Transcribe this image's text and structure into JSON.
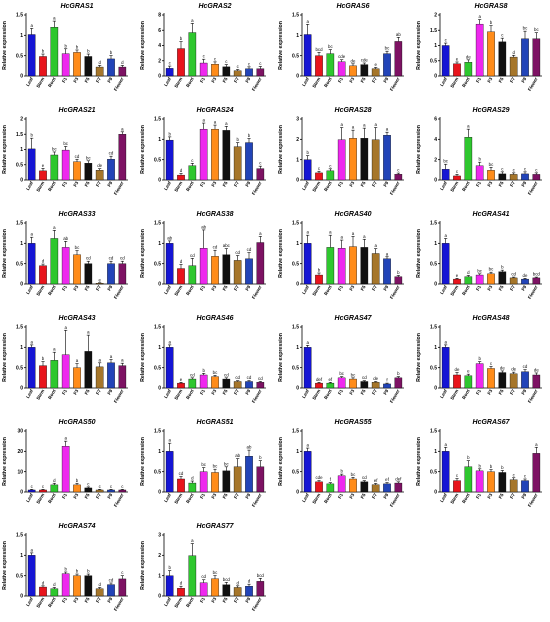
{
  "chart_data": [
    {
      "type": "bar",
      "title": "HcGRAS1",
      "ylabel": "Relative expression",
      "ylim": [
        0,
        1.5
      ],
      "yticks": [
        0,
        0.5,
        1.0,
        1.5
      ],
      "values": [
        1.02,
        0.48,
        1.2,
        0.55,
        0.58,
        0.48,
        0.22,
        0.42,
        0.22
      ],
      "errors": [
        0.15,
        0.06,
        0.15,
        0.12,
        0.06,
        0.06,
        0.04,
        0.08,
        0.04
      ],
      "sig": [
        "a",
        "b",
        "a",
        "b",
        "b",
        "b",
        "d",
        "b",
        "d"
      ]
    },
    {
      "type": "bar",
      "title": "HcGRAS2",
      "ylabel": "Relative expression",
      "ylim": [
        0,
        8
      ],
      "yticks": [
        0,
        2,
        4,
        6,
        8
      ],
      "values": [
        1.0,
        3.6,
        5.7,
        1.7,
        1.55,
        1.2,
        0.7,
        0.95,
        0.95
      ],
      "errors": [
        0.3,
        0.9,
        1.2,
        0.5,
        0.3,
        0.3,
        0.15,
        0.25,
        0.3
      ],
      "sig": [
        "c",
        "b",
        "a",
        "c",
        "c",
        "c",
        "c",
        "c",
        "c"
      ]
    },
    {
      "type": "bar",
      "title": "HcGRAS6",
      "ylabel": "Relative expression",
      "ylim": [
        0,
        1.5
      ],
      "yticks": [
        0,
        0.5,
        1.0,
        1.5
      ],
      "values": [
        1.02,
        0.5,
        0.55,
        0.35,
        0.25,
        0.28,
        0.18,
        0.55,
        0.85
      ],
      "errors": [
        0.25,
        0.08,
        0.1,
        0.05,
        0.05,
        0.04,
        0.03,
        0.06,
        0.1
      ],
      "sig": [
        "a",
        "bcd",
        "bc",
        "cde",
        "de",
        "cde",
        "e",
        "bc",
        "ab"
      ]
    },
    {
      "type": "bar",
      "title": "HcGRAS8",
      "ylabel": "Relative expression",
      "ylim": [
        0,
        2.0
      ],
      "yticks": [
        0,
        0.5,
        1.0,
        1.5,
        2.0
      ],
      "values": [
        1.0,
        0.4,
        0.45,
        1.7,
        1.45,
        1.12,
        0.62,
        1.22,
        1.22
      ],
      "errors": [
        0.08,
        0.06,
        0.08,
        0.15,
        0.2,
        0.12,
        0.06,
        0.25,
        0.2
      ],
      "sig": [
        "c",
        "e",
        "de",
        "a",
        "b",
        "c",
        "d",
        "bc",
        "bc"
      ]
    },
    {
      "type": "bar",
      "title": "HcGRAS21",
      "ylabel": "Relative expression",
      "ylim": [
        0,
        2.0
      ],
      "yticks": [
        0,
        0.5,
        1.0,
        1.5,
        2.0
      ],
      "values": [
        1.02,
        0.3,
        0.82,
        0.98,
        0.6,
        0.55,
        0.32,
        0.68,
        1.5
      ],
      "errors": [
        0.35,
        0.08,
        0.1,
        0.12,
        0.08,
        0.08,
        0.05,
        0.1,
        0.08
      ],
      "sig": [
        "b",
        "e",
        "bc",
        "bc",
        "cd",
        "bc",
        "de",
        "cd",
        "a"
      ]
    },
    {
      "type": "bar",
      "title": "HcGRAS24",
      "ylabel": "Relative expression",
      "ylim": [
        0,
        1.5
      ],
      "yticks": [
        0,
        0.5,
        1.0,
        1.5
      ],
      "values": [
        0.98,
        0.12,
        0.35,
        1.25,
        1.25,
        1.22,
        0.82,
        0.92,
        0.28
      ],
      "errors": [
        0.08,
        0.04,
        0.06,
        0.15,
        0.1,
        0.1,
        0.1,
        0.1,
        0.06
      ],
      "sig": [
        "b",
        "d",
        "c",
        "a",
        "a",
        "a",
        "b",
        "b",
        "c"
      ]
    },
    {
      "type": "bar",
      "title": "HcGRAS28",
      "ylabel": "Relative expression",
      "ylim": [
        0,
        3
      ],
      "yticks": [
        0,
        1,
        2,
        3
      ],
      "values": [
        1.0,
        0.35,
        0.45,
        1.98,
        2.05,
        2.05,
        1.98,
        2.2,
        0.28
      ],
      "errors": [
        0.2,
        0.08,
        0.1,
        0.6,
        0.4,
        0.5,
        0.6,
        0.15,
        0.06
      ],
      "sig": [
        "b",
        "c",
        "c",
        "a",
        "a",
        "a",
        "a",
        "a",
        "c"
      ]
    },
    {
      "type": "bar",
      "title": "HcGRAS29",
      "ylabel": "Relative expression",
      "ylim": [
        0,
        6
      ],
      "yticks": [
        0,
        2,
        4,
        6
      ],
      "values": [
        1.05,
        0.4,
        4.2,
        1.4,
        0.95,
        0.6,
        0.55,
        0.6,
        0.55
      ],
      "errors": [
        0.5,
        0.15,
        0.8,
        0.35,
        0.3,
        0.2,
        0.15,
        0.2,
        0.15
      ],
      "sig": [
        "bc",
        "c",
        "a",
        "b",
        "bc",
        "c",
        "c",
        "c",
        "c"
      ]
    },
    {
      "type": "bar",
      "title": "HcGRAS33",
      "ylabel": "Relative expression",
      "ylim": [
        0,
        1.5
      ],
      "yticks": [
        0,
        0.5,
        1.0,
        1.5
      ],
      "values": [
        1.0,
        0.45,
        1.12,
        0.9,
        0.72,
        0.5,
        0.02,
        0.5,
        0.5
      ],
      "errors": [
        0.15,
        0.04,
        0.2,
        0.15,
        0.1,
        0.06,
        0.01,
        0.06,
        0.06
      ],
      "sig": [
        "a",
        "d",
        "a",
        "ab",
        "bc",
        "cd",
        "e",
        "cd",
        "cd"
      ]
    },
    {
      "type": "bar",
      "title": "HcGRAS38",
      "ylabel": "Relative expression",
      "ylim": [
        0,
        1.5
      ],
      "yticks": [
        0,
        0.5,
        1.0,
        1.5
      ],
      "values": [
        1.0,
        0.38,
        0.45,
        0.88,
        0.68,
        0.72,
        0.58,
        0.62,
        1.02
      ],
      "errors": [
        0.06,
        0.1,
        0.18,
        0.45,
        0.15,
        0.15,
        0.12,
        0.15,
        0.15
      ],
      "sig": [
        "ab",
        "d",
        "cd",
        "ab",
        "cd",
        "abc",
        "cd",
        "cd",
        "a"
      ]
    },
    {
      "type": "bar",
      "title": "HcGRAS40",
      "ylabel": "Relative expression",
      "ylim": [
        0,
        1.5
      ],
      "yticks": [
        0,
        0.5,
        1.0,
        1.5
      ],
      "values": [
        1.0,
        0.22,
        0.9,
        0.88,
        0.92,
        0.9,
        0.75,
        0.62,
        0.18
      ],
      "errors": [
        0.2,
        0.05,
        0.3,
        0.2,
        0.25,
        0.2,
        0.12,
        0.05,
        0.03
      ],
      "sig": [
        "a",
        "b",
        "a",
        "a",
        "a",
        "a",
        "a",
        "a",
        "b"
      ]
    },
    {
      "type": "bar",
      "title": "HcGRAS41",
      "ylabel": "Relative expression",
      "ylim": [
        0,
        1.5
      ],
      "yticks": [
        0,
        0.5,
        1.0,
        1.5
      ],
      "values": [
        1.0,
        0.12,
        0.18,
        0.22,
        0.25,
        0.3,
        0.15,
        0.12,
        0.15
      ],
      "errors": [
        0.12,
        0.02,
        0.03,
        0.03,
        0.04,
        0.04,
        0.02,
        0.02,
        0.02
      ],
      "sig": [
        "a",
        "e",
        "d",
        "bc",
        "bc",
        "b",
        "cd",
        "de",
        "bcd"
      ]
    },
    {
      "type": "bar",
      "title": "HcGRAS43",
      "ylabel": "Relative expression",
      "ylim": [
        0,
        1.5
      ],
      "yticks": [
        0,
        0.5,
        1.0,
        1.5
      ],
      "values": [
        1.0,
        0.55,
        0.68,
        0.82,
        0.5,
        0.9,
        0.52,
        0.62,
        0.55
      ],
      "errors": [
        0.06,
        0.1,
        0.2,
        0.6,
        0.1,
        0.4,
        0.1,
        0.08,
        0.06
      ],
      "sig": [
        "a",
        "b",
        "a",
        "a",
        "a",
        "a",
        "a",
        "a",
        "a"
      ]
    },
    {
      "type": "bar",
      "title": "HcGRAS46",
      "ylabel": "Relative expression",
      "ylim": [
        0,
        1.5
      ],
      "yticks": [
        0,
        0.5,
        1.0,
        1.5
      ],
      "values": [
        1.0,
        0.12,
        0.22,
        0.32,
        0.28,
        0.22,
        0.16,
        0.16,
        0.14
      ],
      "errors": [
        0.06,
        0.02,
        0.03,
        0.04,
        0.03,
        0.03,
        0.02,
        0.02,
        0.02
      ],
      "sig": [
        "a",
        "e",
        "cd",
        "b",
        "bc",
        "cd",
        "cd",
        "cd",
        "cd"
      ]
    },
    {
      "type": "bar",
      "title": "HcGRAS47",
      "ylabel": "Relative expression",
      "ylim": [
        0,
        1.5
      ],
      "yticks": [
        0,
        0.5,
        1.0,
        1.5
      ],
      "values": [
        1.0,
        0.12,
        0.12,
        0.25,
        0.22,
        0.16,
        0.14,
        0.1,
        0.25
      ],
      "errors": [
        0.05,
        0.02,
        0.02,
        0.03,
        0.03,
        0.02,
        0.02,
        0.02,
        0.03
      ],
      "sig": [
        "a",
        "def",
        "ef",
        "bc",
        "bc",
        "cd",
        "de",
        "f",
        "b"
      ]
    },
    {
      "type": "bar",
      "title": "HcGRAS48",
      "ylabel": "Relative expression",
      "ylim": [
        0,
        1.5
      ],
      "yticks": [
        0,
        0.5,
        1.0,
        1.5
      ],
      "values": [
        1.0,
        0.32,
        0.3,
        0.6,
        0.48,
        0.38,
        0.35,
        0.4,
        0.32
      ],
      "errors": [
        0.06,
        0.06,
        0.04,
        0.05,
        0.05,
        0.04,
        0.04,
        0.05,
        0.05
      ],
      "sig": [
        "a",
        "de",
        "e",
        "b",
        "c",
        "de",
        "de",
        "cd",
        "de"
      ]
    },
    {
      "type": "bar",
      "title": "HcGRAS50",
      "ylabel": "Relative expression",
      "ylim": [
        0,
        30
      ],
      "yticks": [
        0,
        10,
        20,
        30
      ],
      "values": [
        1.0,
        1.0,
        3.5,
        22.5,
        3.5,
        2.0,
        1.0,
        1.0,
        1.0
      ],
      "errors": [
        0.3,
        0.3,
        0.8,
        2.5,
        0.8,
        0.5,
        0.3,
        0.3,
        0.3
      ],
      "sig": [
        "c",
        "c",
        "d",
        "a",
        "b",
        "c",
        "c",
        "c",
        "c"
      ]
    },
    {
      "type": "bar",
      "title": "HcGRAS51",
      "ylabel": "Relative expression",
      "ylim": [
        0,
        1.5
      ],
      "yticks": [
        0,
        0.5,
        1.0,
        1.5
      ],
      "values": [
        1.0,
        0.32,
        0.22,
        0.5,
        0.48,
        0.52,
        0.62,
        0.88,
        0.62
      ],
      "errors": [
        0.2,
        0.06,
        0.05,
        0.1,
        0.08,
        0.1,
        0.2,
        0.15,
        0.15
      ],
      "sig": [
        "a",
        "cd",
        "d",
        "bc",
        "bc",
        "bc",
        "ab",
        "ab",
        "b"
      ]
    },
    {
      "type": "bar",
      "title": "HcGRAS55",
      "ylabel": "Relative expression",
      "ylim": [
        0,
        1.5
      ],
      "yticks": [
        0,
        0.5,
        1.0,
        1.5
      ],
      "values": [
        1.0,
        0.25,
        0.2,
        0.4,
        0.32,
        0.25,
        0.18,
        0.2,
        0.22
      ],
      "errors": [
        0.08,
        0.03,
        0.03,
        0.04,
        0.04,
        0.03,
        0.03,
        0.03,
        0.03
      ],
      "sig": [
        "a",
        "cde",
        "f",
        "b",
        "bc",
        "cd",
        "ef",
        "ef",
        "def"
      ]
    },
    {
      "type": "bar",
      "title": "HcGRAS67",
      "ylabel": "Relative expression",
      "ylim": [
        0,
        1.5
      ],
      "yticks": [
        0,
        0.5,
        1.0,
        1.5
      ],
      "values": [
        1.0,
        0.28,
        0.62,
        0.52,
        0.5,
        0.48,
        0.3,
        0.28,
        0.95
      ],
      "errors": [
        0.1,
        0.05,
        0.15,
        0.05,
        0.05,
        0.05,
        0.05,
        0.04,
        0.15
      ],
      "sig": [
        "a",
        "c",
        "b",
        "b",
        "b",
        "b",
        "c",
        "c",
        "a"
      ]
    },
    {
      "type": "bar",
      "title": "HcGRAS74",
      "ylabel": "Relative expression",
      "ylim": [
        0,
        1.5
      ],
      "yticks": [
        0,
        0.5,
        1.0,
        1.5
      ],
      "values": [
        1.0,
        0.22,
        0.18,
        0.55,
        0.5,
        0.5,
        0.18,
        0.28,
        0.42
      ],
      "errors": [
        0.06,
        0.03,
        0.03,
        0.04,
        0.04,
        0.04,
        0.03,
        0.04,
        0.08
      ],
      "sig": [
        "a",
        "d",
        "d",
        "b",
        "b",
        "b",
        "d",
        "cd",
        "c"
      ]
    },
    {
      "type": "bar",
      "title": "HcGRAS77",
      "ylabel": "Relative expression",
      "ylim": [
        0,
        3
      ],
      "yticks": [
        0,
        1,
        2,
        3
      ],
      "values": [
        1.0,
        0.38,
        1.98,
        0.65,
        0.85,
        0.55,
        0.42,
        0.48,
        0.72
      ],
      "errors": [
        0.25,
        0.1,
        0.6,
        0.15,
        0.15,
        0.12,
        0.08,
        0.1,
        0.15
      ],
      "sig": [
        "b",
        "d",
        "a",
        "cd",
        "bc",
        "bcd",
        "d",
        "d",
        "bcd"
      ]
    }
  ],
  "categories": [
    "Leaf",
    "Stem",
    "Root",
    "F1",
    "F3",
    "F5",
    "F7",
    "F9",
    "Flower"
  ],
  "bar_colors": [
    "#1515d4",
    "#e8141c",
    "#2ec72e",
    "#ee28ee",
    "#ff8c1a",
    "#101010",
    "#a6762a",
    "#2244b8",
    "#7d1263"
  ]
}
